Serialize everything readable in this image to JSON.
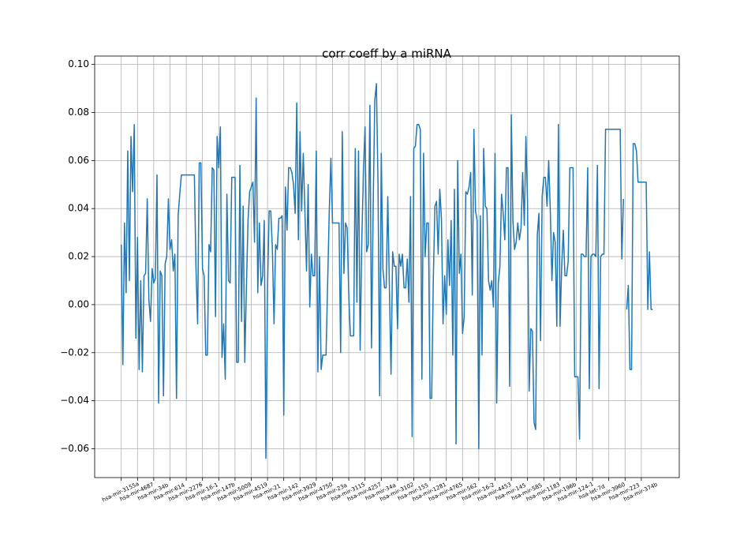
{
  "chart_data": {
    "type": "line",
    "title": "corr coeff by a miRNA",
    "categories": [
      "hsa-mir-3155a",
      null,
      null,
      null,
      null,
      null,
      null,
      null,
      null,
      null,
      "hsa-mir-4687",
      null,
      null,
      null,
      null,
      null,
      null,
      null,
      null,
      null,
      "hsa-mir-34b",
      null,
      null,
      null,
      null,
      null,
      null,
      null,
      null,
      null,
      "hsa-mir-614",
      null,
      null,
      null,
      null,
      null,
      null,
      null,
      null,
      null,
      "hsa-mir-2276",
      null,
      null,
      null,
      null,
      null,
      null,
      null,
      null,
      null,
      "hsa-mir-16-1",
      null,
      null,
      null,
      null,
      null,
      null,
      null,
      null,
      null,
      "hsa-mir-147b",
      null,
      null,
      null,
      null,
      null,
      null,
      null,
      null,
      null,
      "hsa-mir-5009",
      null,
      null,
      null,
      null,
      null,
      null,
      null,
      null,
      null,
      "hsa-mir-4519",
      null,
      null,
      null,
      null,
      null,
      null,
      null,
      null,
      null,
      "hsa-mir-21",
      null,
      null,
      null,
      null,
      null,
      null,
      null,
      null,
      null,
      "hsa-mir-142",
      null,
      null,
      null,
      null,
      null,
      null,
      null,
      null,
      null,
      "hsa-mir-3929",
      null,
      null,
      null,
      null,
      null,
      null,
      null,
      null,
      null,
      "hsa-mir-4750",
      null,
      null,
      null,
      null,
      null,
      null,
      null,
      null,
      null,
      "hsa-mir-23a",
      null,
      null,
      null,
      null,
      null,
      null,
      null,
      null,
      null,
      "hsa-mir-3115",
      null,
      null,
      null,
      null,
      null,
      null,
      null,
      null,
      null,
      "hsa-mir-4257",
      null,
      null,
      null,
      null,
      null,
      null,
      null,
      null,
      null,
      "hsa-mir-34a",
      null,
      null,
      null,
      null,
      null,
      null,
      null,
      null,
      null,
      "hsa-mir-3102",
      null,
      null,
      null,
      null,
      null,
      null,
      null,
      null,
      null,
      "hsa-mir-155",
      null,
      null,
      null,
      null,
      null,
      null,
      null,
      null,
      null,
      "hsa-mir-1281",
      null,
      null,
      null,
      null,
      null,
      null,
      null,
      null,
      null,
      "hsa-mir-4765",
      null,
      null,
      null,
      null,
      null,
      null,
      null,
      null,
      null,
      "hsa-mir-562",
      null,
      null,
      null,
      null,
      null,
      null,
      null,
      null,
      null,
      "hsa-mir-16-2",
      null,
      null,
      null,
      null,
      null,
      null,
      null,
      null,
      null,
      "hsa-mir-4453",
      null,
      null,
      null,
      null,
      null,
      null,
      null,
      null,
      null,
      "hsa-mir-145",
      null,
      null,
      null,
      null,
      null,
      null,
      null,
      null,
      null,
      "hsa-mir-585",
      null,
      null,
      null,
      null,
      null,
      null,
      null,
      null,
      null,
      "hsa-mir-1183",
      null,
      null,
      null,
      null,
      null,
      null,
      null,
      null,
      null,
      "hsa-mir-196b",
      null,
      null,
      null,
      null,
      null,
      null,
      null,
      null,
      null,
      "hsa-mir-124-1",
      null,
      null,
      null,
      null,
      null,
      null,
      null,
      null,
      null,
      "hsa-let-7d",
      null,
      null,
      null,
      null,
      null,
      null,
      null,
      null,
      null,
      "hsa-mir-3960",
      null,
      null,
      null,
      null,
      null,
      null,
      null,
      null,
      null,
      "hsa-mir-223",
      null,
      null,
      null,
      null,
      null,
      null,
      null,
      null,
      null,
      "hsa-mir-374b",
      null,
      null,
      null,
      null,
      null,
      null,
      null
    ],
    "values": [
      0.025,
      -0.025,
      0.034,
      0.005,
      0.064,
      0.01,
      0.07,
      0.047,
      0.075,
      -0.014,
      0.028,
      -0.027,
      0.01,
      -0.028,
      0.012,
      0.013,
      0.044,
      0.002,
      -0.007,
      0.015,
      0.009,
      0.011,
      0.054,
      -0.041,
      0.014,
      0.012,
      -0.038,
      0.017,
      0.02,
      0.044,
      0.023,
      0.027,
      0.014,
      0.021,
      -0.039,
      0.037,
      0.046,
      0.054,
      0.054,
      0.054,
      0.054,
      0.054,
      0.054,
      0.054,
      0.054,
      0.054,
      0.015,
      -0.008,
      0.059,
      0.059,
      0.015,
      0.012,
      -0.021,
      -0.021,
      0.025,
      0.022,
      0.057,
      0.056,
      -0.005,
      0.07,
      0.057,
      0.074,
      -0.022,
      -0.008,
      -0.031,
      0.046,
      0.01,
      0.009,
      0.053,
      0.053,
      0.053,
      -0.024,
      -0.024,
      0.058,
      -0.007,
      0.041,
      -0.024,
      0.007,
      0.035,
      0.047,
      0.049,
      0.051,
      0.026,
      0.086,
      0.005,
      0.034,
      0.008,
      0.012,
      0.035,
      -0.064,
      0.007,
      0.039,
      0.039,
      0.023,
      -0.008,
      0.025,
      0.023,
      0.036,
      0.036,
      0.037,
      -0.046,
      0.049,
      0.031,
      0.057,
      0.057,
      0.055,
      0.05,
      0.038,
      0.084,
      0.027,
      0.072,
      0.039,
      0.063,
      0.039,
      0.014,
      0.05,
      -0.001,
      0.021,
      0.012,
      0.012,
      0.064,
      -0.028,
      0.02,
      -0.027,
      -0.021,
      -0.021,
      -0.021,
      0.009,
      0.039,
      0.061,
      0.034,
      0.034,
      0.034,
      0.034,
      0.034,
      -0.02,
      0.072,
      0.013,
      0.034,
      0.032,
      0.004,
      -0.013,
      -0.013,
      -0.013,
      0.065,
      0.001,
      0.064,
      -0.019,
      0.026,
      0.055,
      0.074,
      0.022,
      0.025,
      0.083,
      -0.018,
      0.04,
      0.085,
      0.092,
      0.05,
      -0.038,
      0.063,
      0.015,
      0.007,
      0.007,
      0.045,
      0.007,
      -0.029,
      0.022,
      0.016,
      0.016,
      -0.01,
      0.021,
      0.016,
      0.021,
      0.007,
      0.007,
      0.019,
      0.001,
      0.045,
      -0.055,
      0.065,
      0.066,
      0.075,
      0.075,
      0.073,
      -0.031,
      0.063,
      0.02,
      0.034,
      0.034,
      -0.039,
      -0.039,
      0.01,
      0.041,
      0.043,
      0.021,
      0.048,
      0.036,
      -0.008,
      0.012,
      -0.004,
      0.027,
      0.008,
      0.035,
      -0.021,
      0.048,
      -0.058,
      0.06,
      0.013,
      0.021,
      -0.012,
      -0.005,
      0.047,
      0.046,
      0.049,
      0.055,
      0.004,
      0.073,
      0.039,
      0.035,
      -0.06,
      0.037,
      -0.021,
      0.065,
      0.041,
      0.04,
      0.01,
      0.006,
      0.01,
      -0.001,
      0.063,
      -0.041,
      0.009,
      0.016,
      0.046,
      0.038,
      0.027,
      0.057,
      0.057,
      -0.034,
      0.079,
      0.035,
      0.023,
      0.026,
      0.034,
      0.027,
      0.032,
      0.055,
      0.033,
      0.07,
      0.042,
      -0.036,
      -0.01,
      -0.011,
      -0.049,
      -0.052,
      0.029,
      0.038,
      -0.015,
      0.045,
      0.053,
      0.053,
      0.041,
      0.06,
      0.039,
      0.01,
      0.03,
      0.026,
      -0.009,
      0.075,
      -0.009,
      0.016,
      0.031,
      0.012,
      0.012,
      0.018,
      0.057,
      0.057,
      0.057,
      -0.03,
      -0.03,
      -0.03,
      -0.056,
      0.021,
      0.021,
      0.02,
      0.02,
      0.057,
      -0.035,
      0.02,
      0.021,
      0.021,
      0.02,
      0.058,
      -0.035,
      0.02,
      0.021,
      0.021,
      0.073,
      0.073,
      0.073,
      0.073,
      0.073,
      0.073,
      0.073,
      0.073,
      0.073,
      0.073,
      0.019,
      0.044,
      null,
      -0.002,
      0.008,
      -0.027,
      -0.027,
      0.067,
      0.067,
      0.064,
      0.051,
      0.051,
      0.051,
      0.051,
      0.051,
      0.051,
      -0.002,
      0.022,
      -0.002,
      -0.002
    ],
    "color": "#1f77b4",
    "xlim": [
      -16.35,
      343.35
    ],
    "ylim": [
      -0.072,
      0.1035
    ],
    "yticks": [
      {
        "value": -0.06,
        "label": "−0.06"
      },
      {
        "value": -0.04,
        "label": "−0.04"
      },
      {
        "value": -0.02,
        "label": "−0.02"
      },
      {
        "value": 0,
        "label": "0.00"
      },
      {
        "value": 0.02,
        "label": "0.02"
      },
      {
        "value": 0.04,
        "label": "0.04"
      },
      {
        "value": 0.06,
        "label": "0.06"
      },
      {
        "value": 0.08,
        "label": "0.08"
      },
      {
        "value": 0.1,
        "label": "0.10"
      }
    ],
    "grid": true
  }
}
